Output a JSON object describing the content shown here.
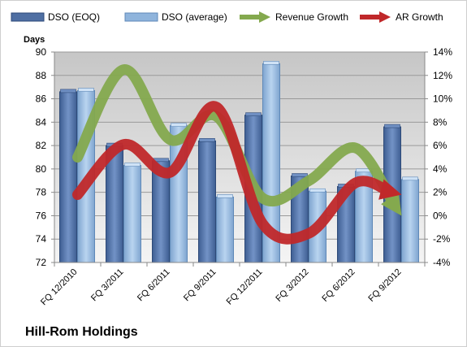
{
  "chart_data": {
    "type": "bar",
    "title": "",
    "company": "Hill-Rom Holdings",
    "ylabel": "Days",
    "ylim": [
      72,
      90
    ],
    "y2lim": [
      -0.04,
      0.14
    ],
    "grid": true,
    "legend_placement": "top",
    "categories": [
      "FQ 12/2010",
      "FQ 3/2011",
      "FQ 6/2011",
      "FQ 9/2011",
      "FQ 12/2011",
      "FQ 3/2012",
      "FQ 6/2012",
      "FQ 9/2012"
    ],
    "x_tick_labels": [
      "FQ 12/2010",
      "FQ 3/2011",
      "FQ 6/2011",
      "FQ 9/2011",
      "FQ 12/2011",
      "FQ 3/2012",
      "FQ 6/2012",
      "FQ 9/2012"
    ],
    "y_tick_labels": [
      "72",
      "74",
      "76",
      "78",
      "80",
      "82",
      "84",
      "86",
      "88",
      "90"
    ],
    "y2_tick_labels": [
      "-4%",
      "-2%",
      "0%",
      "2%",
      "4%",
      "6%",
      "8%",
      "10%",
      "12%",
      "14%"
    ],
    "series": [
      {
        "name": "DSO (EOQ)",
        "kind": "bar",
        "axis": "left",
        "color": "#4f6fa3",
        "values": [
          86.6,
          82.0,
          80.7,
          82.4,
          84.6,
          79.4,
          78.5,
          83.6
        ]
      },
      {
        "name": "DSO (average)",
        "kind": "bar",
        "axis": "left",
        "color": "#8fb4dc",
        "values": [
          86.7,
          80.3,
          83.7,
          77.6,
          89.0,
          78.1,
          79.8,
          79.1
        ]
      },
      {
        "name": "Revenue Growth",
        "kind": "line",
        "axis": "right",
        "color": "#84a94e",
        "values": [
          0.05,
          0.125,
          0.065,
          0.085,
          0.015,
          0.03,
          0.058,
          0.0
        ]
      },
      {
        "name": "AR Growth",
        "kind": "line",
        "axis": "right",
        "color": "#c0282a",
        "values": [
          0.018,
          0.061,
          0.037,
          0.093,
          -0.007,
          -0.015,
          0.028,
          0.018
        ]
      }
    ]
  }
}
